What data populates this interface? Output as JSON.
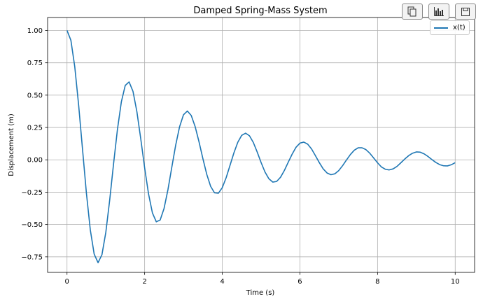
{
  "chart_data": {
    "type": "line",
    "title": "Damped Spring-Mass System",
    "xlabel": "Time (s)",
    "ylabel": "Displacement (m)",
    "xlim": [
      -0.5,
      10.5
    ],
    "ylim": [
      -0.87,
      1.1
    ],
    "xticks": [
      0,
      2,
      4,
      6,
      8,
      10
    ],
    "xtick_labels": [
      "0",
      "2",
      "4",
      "6",
      "8",
      "10"
    ],
    "yticks": [
      -0.75,
      -0.5,
      -0.25,
      0.0,
      0.25,
      0.5,
      0.75,
      1.0
    ],
    "ytick_labels": [
      "−0.75",
      "−0.50",
      "−0.25",
      "0.00",
      "0.25",
      "0.50",
      "0.75",
      "1.00"
    ],
    "grid": true,
    "legend_position": "top-right",
    "series": [
      {
        "name": "x(t)",
        "color": "#1f77b4",
        "x": [
          0,
          0.1,
          0.2,
          0.3,
          0.4,
          0.5,
          0.6,
          0.7,
          0.8,
          0.9,
          1.0,
          1.1,
          1.2,
          1.3,
          1.4,
          1.5,
          1.6,
          1.7,
          1.8,
          1.9,
          2.0,
          2.1,
          2.2,
          2.3,
          2.4,
          2.5,
          2.6,
          2.7,
          2.8,
          2.9,
          3.0,
          3.1,
          3.2,
          3.3,
          3.4,
          3.5,
          3.6,
          3.7,
          3.8,
          3.9,
          4.0,
          4.1,
          4.2,
          4.3,
          4.4,
          4.5,
          4.6,
          4.7,
          4.8,
          4.9,
          5.0,
          5.1,
          5.2,
          5.3,
          5.4,
          5.5,
          5.6,
          5.7,
          5.8,
          5.9,
          6.0,
          6.1,
          6.2,
          6.3,
          6.4,
          6.5,
          6.6,
          6.7,
          6.8,
          6.9,
          7.0,
          7.1,
          7.2,
          7.3,
          7.4,
          7.5,
          7.6,
          7.7,
          7.8,
          7.9,
          8.0,
          8.1,
          8.2,
          8.3,
          8.4,
          8.5,
          8.6,
          8.7,
          8.8,
          8.9,
          9.0,
          9.1,
          9.2,
          9.3,
          9.4,
          9.5,
          9.6,
          9.7,
          9.8,
          9.9,
          10.0
        ],
        "y": [
          1.0,
          0.924,
          0.719,
          0.422,
          0.08,
          -0.258,
          -0.541,
          -0.729,
          -0.795,
          -0.733,
          -0.56,
          -0.31,
          -0.029,
          0.237,
          0.448,
          0.575,
          0.602,
          0.529,
          0.372,
          0.162,
          -0.062,
          -0.263,
          -0.41,
          -0.479,
          -0.465,
          -0.376,
          -0.231,
          -0.057,
          0.114,
          0.256,
          0.348,
          0.377,
          0.343,
          0.258,
          0.14,
          0.01,
          -0.112,
          -0.205,
          -0.255,
          -0.258,
          -0.215,
          -0.138,
          -0.042,
          0.054,
          0.136,
          0.189,
          0.206,
          0.186,
          0.134,
          0.06,
          -0.021,
          -0.094,
          -0.146,
          -0.172,
          -0.167,
          -0.135,
          -0.082,
          -0.018,
          0.044,
          0.097,
          0.129,
          0.137,
          0.121,
          0.084,
          0.032,
          -0.022,
          -0.07,
          -0.102,
          -0.115,
          -0.108,
          -0.083,
          -0.045,
          -0.001,
          0.041,
          0.074,
          0.093,
          0.093,
          0.079,
          0.051,
          0.014,
          -0.023,
          -0.055,
          -0.073,
          -0.078,
          -0.07,
          -0.051,
          -0.023,
          0.006,
          0.032,
          0.051,
          0.061,
          0.059,
          0.046,
          0.026,
          0.002,
          -0.02,
          -0.037,
          -0.046,
          -0.047,
          -0.038,
          -0.022
        ]
      }
    ]
  },
  "legend": {
    "label": "x(t)"
  },
  "toolbar": {
    "icons": [
      "copy-icon",
      "bar-chart-icon",
      "save-icon"
    ]
  }
}
